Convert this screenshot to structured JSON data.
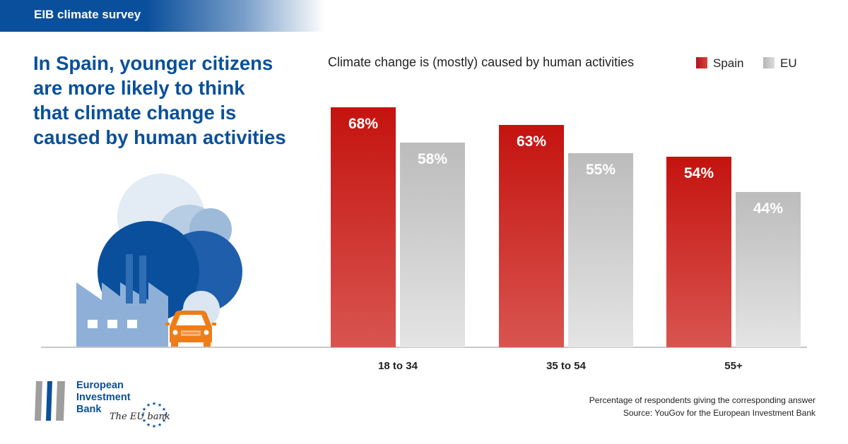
{
  "header": {
    "banner": "EIB climate survey"
  },
  "headline": [
    "In Spain, younger citizens",
    "are more likely to think",
    "that climate change is",
    "caused by human activities"
  ],
  "colors": {
    "spain": "#c8161a",
    "eu": "#bdbdbd",
    "brand_blue": "#0a5099"
  },
  "chart_data": {
    "type": "bar",
    "title": "Climate change is (mostly) caused by human activities",
    "categories": [
      "18 to 34",
      "35 to 54",
      "55+"
    ],
    "series": [
      {
        "name": "Spain",
        "values": [
          68,
          63,
          54
        ],
        "labels": [
          "68%",
          "63%",
          "54%"
        ]
      },
      {
        "name": "EU",
        "values": [
          58,
          55,
          44
        ],
        "labels": [
          "58%",
          "55%",
          "44%"
        ]
      }
    ],
    "ylim": [
      0,
      100
    ],
    "grid": false,
    "legend_position": "top-right"
  },
  "footnote": {
    "line1": "Percentage of respondents giving the corresponding answer",
    "line2": "Source: YouGov for the European Investment Bank"
  },
  "logo": {
    "lines": [
      "European",
      "Investment",
      "Bank"
    ],
    "tagline": "The EU bank"
  },
  "icons": [
    "factory-icon",
    "car-icon",
    "smoke-cloud-icon",
    "eu-stars-icon"
  ]
}
